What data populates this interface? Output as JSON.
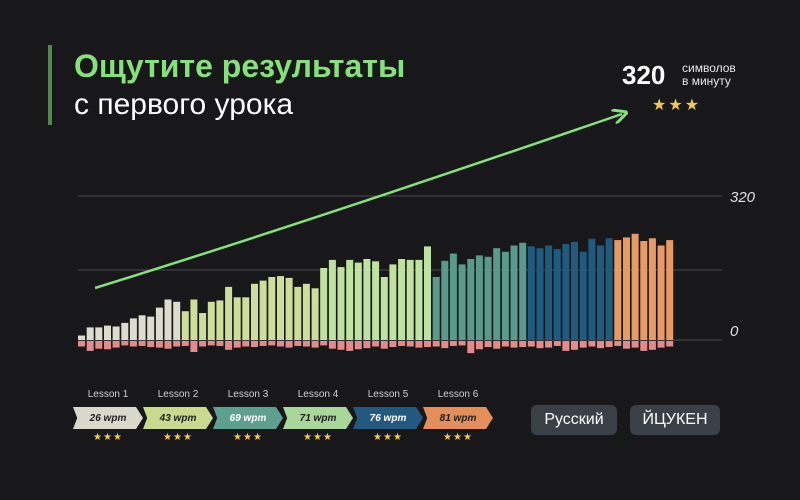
{
  "headline": {
    "line1": "Ощутите результаты",
    "line2": "с первого урока"
  },
  "speed": {
    "value": "320",
    "unit_line1": "символов",
    "unit_line2": "в минуту",
    "stars": "★★★"
  },
  "chart_data": {
    "type": "bar",
    "title": "",
    "y_tick_labels": [
      "320",
      "0"
    ],
    "ylim": [
      0,
      320
    ],
    "groups": [
      {
        "color": "#dcdccf",
        "values": [
          10,
          28,
          28,
          32,
          30,
          38,
          48,
          55,
          52,
          72,
          90,
          85
        ]
      },
      {
        "color": "#d0dc9a",
        "values": [
          64,
          90,
          60,
          85,
          88,
          118,
          95,
          95,
          125,
          132,
          140,
          142,
          138,
          118,
          125,
          115
        ]
      },
      {
        "color": "#bfe2a0",
        "values": [
          160,
          178,
          162,
          178,
          172,
          180,
          175,
          140,
          168,
          180,
          178,
          178,
          208
        ]
      },
      {
        "color": "#5a9a8c",
        "values": [
          140,
          176,
          192,
          168,
          180,
          188,
          185,
          204,
          196,
          210,
          216
        ]
      },
      {
        "color": "#1f5a80",
        "values": [
          208,
          204,
          210,
          202,
          213,
          218,
          196,
          225,
          210,
          226
        ]
      },
      {
        "color": "#e89a64",
        "values": [
          222,
          228,
          236,
          220,
          226,
          210,
          222
        ]
      }
    ],
    "negatives": [
      10,
      18,
      14,
      15,
      12,
      8,
      10,
      9,
      11,
      12,
      14,
      10,
      9,
      20,
      10,
      8,
      9,
      16,
      12,
      10,
      11,
      9,
      8,
      10,
      12,
      9,
      10,
      12,
      8,
      14,
      16,
      18,
      15,
      13,
      10,
      14,
      11,
      9,
      10,
      12,
      11,
      10,
      13,
      9,
      8,
      22,
      15,
      11,
      14,
      10,
      12,
      11,
      10,
      13,
      12,
      9,
      18,
      16,
      12,
      10,
      13,
      11,
      9,
      14,
      12,
      18,
      16,
      12,
      10,
      14,
      10,
      12,
      11,
      10,
      12,
      14,
      10,
      9
    ]
  },
  "lessons": [
    {
      "label": "Lesson 1",
      "wpm": "26 wpm",
      "stars": "★★★",
      "color": "#d9d9cb",
      "text_color": "#202020"
    },
    {
      "label": "Lesson 2",
      "wpm": "43 wpm",
      "stars": "★★★",
      "color": "#cbd98f",
      "text_color": "#202020"
    },
    {
      "label": "Lesson 3",
      "wpm": "69 wpm",
      "stars": "★★★",
      "color": "#5e9f90",
      "text_color": "#ffffff"
    },
    {
      "label": "Lesson 4",
      "wpm": "71 wpm",
      "stars": "★★★",
      "color": "#a9d79a",
      "text_color": "#202020"
    },
    {
      "label": "Lesson 5",
      "wpm": "76 wpm",
      "stars": "★★★",
      "color": "#23597f",
      "text_color": "#ffffff"
    },
    {
      "label": "Lesson 6",
      "wpm": "81 wpm",
      "stars": "★★★",
      "color": "#e48e5a",
      "text_color": "#202020"
    }
  ],
  "buttons": {
    "language": "Русский",
    "layout": "ЙЦУКЕН"
  }
}
